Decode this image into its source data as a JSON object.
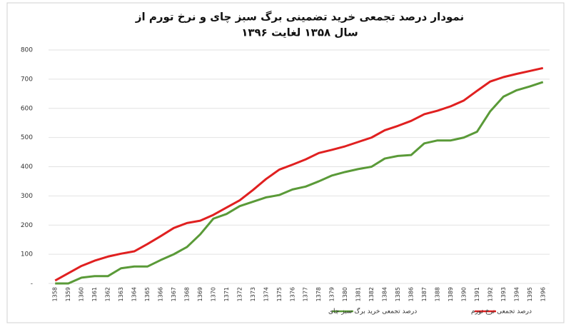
{
  "chart_data": {
    "type": "line",
    "title": [
      "نمودار درصد تجمعی خرید تضمینی برگ سبز چای و نرخ تورم از",
      "سال ۱۳۵۸ لغایت ۱۳۹۶"
    ],
    "categories": [
      "1358",
      "1359",
      "1360",
      "1361",
      "1362",
      "1363",
      "1364",
      "1365",
      "1366",
      "1367",
      "1368",
      "1369",
      "1370",
      "1371",
      "1372",
      "1373",
      "1374",
      "1375",
      "1376",
      "1377",
      "1378",
      "1379",
      "1380",
      "1381",
      "1382",
      "1384",
      "1385",
      "1386",
      "1387",
      "1388",
      "1389",
      "1390",
      "1391",
      "1392",
      "1393",
      "1394",
      "1395",
      "1396"
    ],
    "series": [
      {
        "name": "درصد تجمعی خرید برگ سبز چای",
        "color": "#5a9a38",
        "values": [
          0,
          0,
          20,
          25,
          25,
          52,
          58,
          58,
          80,
          100,
          125,
          168,
          222,
          238,
          265,
          280,
          295,
          303,
          322,
          332,
          350,
          370,
          382,
          392,
          400,
          428,
          437,
          440,
          480,
          490,
          490,
          500,
          520,
          590,
          640,
          662,
          675,
          690
        ]
      },
      {
        "name": "درصد تجمعی نرخ تورم",
        "color": "#e02020",
        "values": [
          10,
          35,
          60,
          78,
          92,
          102,
          110,
          135,
          162,
          190,
          207,
          215,
          235,
          260,
          285,
          320,
          358,
          390,
          407,
          425,
          447,
          458,
          470,
          485,
          500,
          525,
          540,
          557,
          580,
          592,
          607,
          627,
          660,
          692,
          707,
          718,
          728,
          738
        ]
      }
    ],
    "ylim": [
      0,
      800
    ],
    "yticks": [
      {
        "value": 0,
        "label": "-"
      },
      100,
      200,
      300,
      400,
      500,
      600,
      700,
      800
    ],
    "grid": true,
    "legend": "bottom"
  }
}
